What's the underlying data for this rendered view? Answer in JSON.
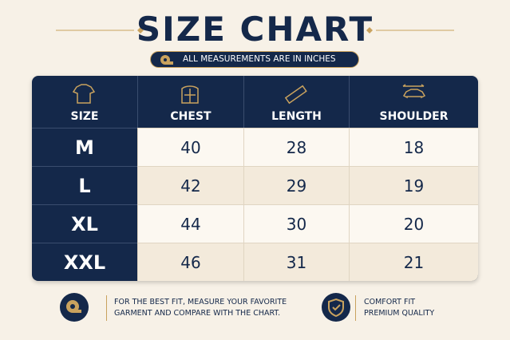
{
  "header": {
    "title": "SIZE CHART",
    "subtitle": "ALL MEASUREMENTS ARE IN INCHES"
  },
  "table": {
    "columns": [
      "SIZE",
      "CHEST",
      "LENGTH",
      "SHOULDER"
    ],
    "rows": [
      [
        "M",
        40,
        28,
        18
      ],
      [
        "L",
        42,
        29,
        19
      ],
      [
        "XL",
        44,
        30,
        20
      ],
      [
        "XXL",
        46,
        31,
        21
      ]
    ]
  },
  "footer": {
    "tip": [
      "FOR THE BEST FIT, MEASURE YOUR FAVORITE",
      "GARMENT AND COMPARE WITH THE CHART."
    ],
    "badges": [
      "COMFORT FIT",
      "PREMIUM QUALITY"
    ]
  }
}
